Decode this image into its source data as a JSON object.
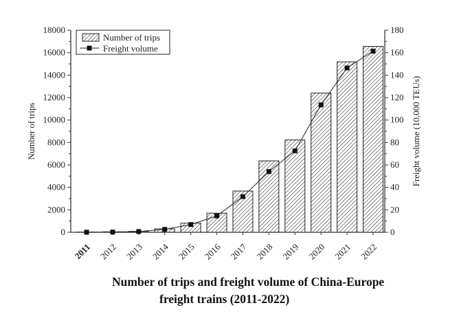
{
  "chart_data": {
    "type": "bar",
    "title_line1": "Number of trips and freight volume of China-Europe",
    "title_line2": "freight trains (2011-2022)",
    "categories": [
      "2011",
      "2012",
      "2013",
      "2014",
      "2015",
      "2016",
      "2017",
      "2018",
      "2019",
      "2020",
      "2021",
      "2022"
    ],
    "series": [
      {
        "name": "Number of trips",
        "type": "bar",
        "axis": "left",
        "values": [
          17,
          42,
          80,
          308,
          815,
          1702,
          3673,
          6363,
          8225,
          12406,
          15183,
          16562
        ]
      },
      {
        "name": "Freight volume",
        "type": "line",
        "axis": "right",
        "values": [
          0.1,
          0.2,
          0.7,
          2.6,
          6.9,
          14.6,
          31.8,
          54.1,
          72.5,
          113.5,
          146.4,
          161.4
        ]
      }
    ],
    "ylabel": "Number of trips",
    "ylabel_right": "Freight volume (10,000 TEUs)",
    "ylim": [
      0,
      18000
    ],
    "ylim_right": [
      0,
      180
    ],
    "yticks": [
      "0",
      "2000",
      "4000",
      "6000",
      "8000",
      "10000",
      "12000",
      "14000",
      "16000",
      "18000"
    ],
    "yticks_right": [
      "0",
      "20",
      "40",
      "60",
      "80",
      "100",
      "120",
      "140",
      "160",
      "180"
    ],
    "legend_position": "top-left",
    "grid": false
  }
}
